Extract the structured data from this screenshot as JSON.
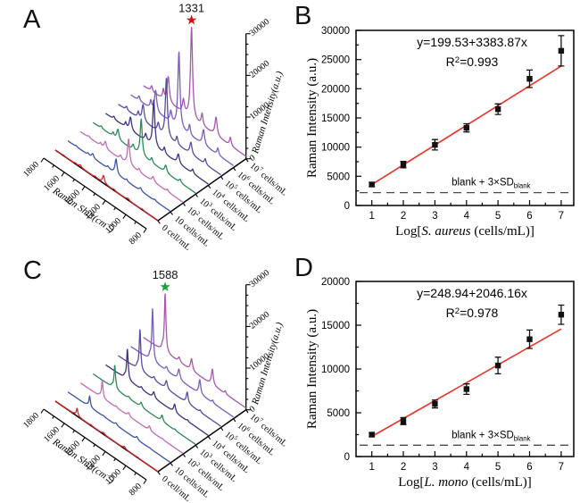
{
  "figure": {
    "background": "#ffffff",
    "panels": [
      {
        "letter": "A"
      },
      {
        "letter": "B"
      },
      {
        "letter": "C"
      },
      {
        "letter": "D"
      }
    ]
  },
  "chart_data": [
    {
      "panel": "A",
      "type": "waterfall3d",
      "peak_annotation": {
        "text": "1331",
        "star_color": "#cc1414"
      },
      "xaxis": {
        "label": "Raman Shift(cm⁻¹)",
        "label_parts": [
          {
            "t": "Raman Shift(cm"
          },
          {
            "t": "-1",
            "sup": true
          },
          {
            "t": ")"
          }
        ],
        "ticks": [
          1800,
          1600,
          1400,
          1200,
          1000,
          800
        ],
        "minor_step": 100,
        "range": [
          800,
          1800
        ]
      },
      "zaxis": {
        "label": "Raman Intensity(a.u.)",
        "ticks": [
          0,
          10000,
          20000,
          30000
        ],
        "minor_step": 2500,
        "range": [
          0,
          30000
        ]
      },
      "series": [
        {
          "label": "0 cell/mL",
          "parts": [
            {
              "t": "0 cell/mL"
            }
          ],
          "color": "#d62626",
          "peak_intensity": 1800
        },
        {
          "label": "10 cells/mL",
          "parts": [
            {
              "t": "10 cells/mL"
            }
          ],
          "color": "#3a55a8",
          "peak_intensity": 3600
        },
        {
          "label": "10² cells/mL",
          "parts": [
            {
              "t": "10"
            },
            {
              "t": "2",
              "sup": true
            },
            {
              "t": " cells/mL"
            }
          ],
          "color": "#c46cb4",
          "peak_intensity": 6200
        },
        {
          "label": "10³ cells/mL",
          "parts": [
            {
              "t": "10"
            },
            {
              "t": "3",
              "sup": true
            },
            {
              "t": " cells/mL"
            }
          ],
          "color": "#2e8b57",
          "peak_intensity": 8800
        },
        {
          "label": "10⁴ cells/mL",
          "parts": [
            {
              "t": "10"
            },
            {
              "t": "4",
              "sup": true
            },
            {
              "t": " cells/mL"
            }
          ],
          "color": "#3a3282",
          "peak_intensity": 11200
        },
        {
          "label": "10⁵ cells/mL",
          "parts": [
            {
              "t": "10"
            },
            {
              "t": "5",
              "sup": true
            },
            {
              "t": " cells/mL"
            }
          ],
          "color": "#5c49a2",
          "peak_intensity": 14200
        },
        {
          "label": "10⁶ cells/mL",
          "parts": [
            {
              "t": "10"
            },
            {
              "t": "6",
              "sup": true
            },
            {
              "t": " cells/mL"
            }
          ],
          "color": "#7a5cc0",
          "peak_intensity": 18300
        },
        {
          "label": "10⁷ cells/mL",
          "parts": [
            {
              "t": "10"
            },
            {
              "t": "7",
              "sup": true
            },
            {
              "t": " cells/mL"
            }
          ],
          "color": "#a757ae",
          "peak_intensity": 22000
        }
      ],
      "peaks": [
        {
          "shift": 952,
          "rel": 0.09,
          "width": 10
        },
        {
          "shift": 1092,
          "rel": 0.2,
          "width": 13
        },
        {
          "shift": 1228,
          "rel": 0.13,
          "width": 10
        },
        {
          "shift": 1331,
          "rel": 1.0,
          "width": 12
        },
        {
          "shift": 1410,
          "rel": 0.14,
          "width": 11
        },
        {
          "shift": 1558,
          "rel": 0.28,
          "width": 13
        },
        {
          "shift": 1605,
          "rel": 0.1,
          "width": 9
        },
        {
          "shift": 1720,
          "rel": 0.06,
          "width": 10
        }
      ],
      "baseline_rel": 0.025
    },
    {
      "panel": "B",
      "type": "scatter_calibration",
      "equation": "y=199.53+3383.87x",
      "r_squared": "R²=0.993",
      "r_squared_parts": [
        {
          "t": "R"
        },
        {
          "t": "2",
          "sup": true
        },
        {
          "t": "=0.993"
        }
      ],
      "fit": {
        "intercept": 199.53,
        "slope": 3383.87,
        "color": "#e8352b"
      },
      "xlabel": "Log[S. aureus (cells/mL)]",
      "xlabel_parts": [
        {
          "t": "Log["
        },
        {
          "t": "S. aureus",
          "i": true
        },
        {
          "t": " (cells/mL)]"
        }
      ],
      "ylabel": "Raman Intensity (a.u.)",
      "x": [
        1,
        2,
        3,
        4,
        5,
        6,
        7
      ],
      "y": [
        3600,
        7000,
        10400,
        13300,
        16500,
        21700,
        26500
      ],
      "yerr": [
        350,
        550,
        900,
        700,
        900,
        1500,
        2600
      ],
      "xlim": [
        0.5,
        7.4
      ],
      "ylim": [
        0,
        30000
      ],
      "x_ticks": [
        1,
        2,
        3,
        4,
        5,
        6,
        7
      ],
      "y_ticks": [
        0,
        5000,
        10000,
        15000,
        20000,
        25000,
        30000
      ],
      "y_minor": 2500,
      "marker_color": "#111111",
      "threshold": {
        "value": 2200,
        "label": "blank + 3×SD",
        "label_sub": "blank"
      }
    },
    {
      "panel": "C",
      "type": "waterfall3d",
      "peak_annotation": {
        "text": "1588",
        "star_color": "#1aa23e"
      },
      "xaxis": {
        "label": "Raman Shift(cm⁻¹)",
        "label_parts": [
          {
            "t": "Raman Shift(cm"
          },
          {
            "t": "-1",
            "sup": true
          },
          {
            "t": ")"
          }
        ],
        "ticks": [
          1800,
          1600,
          1400,
          1200,
          1000,
          800
        ],
        "minor_step": 100,
        "range": [
          800,
          1800
        ]
      },
      "zaxis": {
        "label": "Raman Intensity(a.u.)",
        "ticks": [
          0,
          10000,
          20000,
          30000
        ],
        "minor_step": 2500,
        "range": [
          0,
          30000
        ]
      },
      "series": [
        {
          "label": "0 cell/mL",
          "parts": [
            {
              "t": "0 cell/mL"
            }
          ],
          "color": "#d62626",
          "peak_intensity": 1800
        },
        {
          "label": "10 cells/mL",
          "parts": [
            {
              "t": "10 cells/mL"
            }
          ],
          "color": "#3a55a8",
          "peak_intensity": 2600
        },
        {
          "label": "10² cells/mL",
          "parts": [
            {
              "t": "10"
            },
            {
              "t": "2",
              "sup": true
            },
            {
              "t": " cells/mL"
            }
          ],
          "color": "#c46cb4",
          "peak_intensity": 4000
        },
        {
          "label": "10³ cells/mL",
          "parts": [
            {
              "t": "10"
            },
            {
              "t": "3",
              "sup": true
            },
            {
              "t": " cells/mL"
            }
          ],
          "color": "#2e8b57",
          "peak_intensity": 5600
        },
        {
          "label": "10⁴ cells/mL",
          "parts": [
            {
              "t": "10"
            },
            {
              "t": "4",
              "sup": true
            },
            {
              "t": " cells/mL"
            }
          ],
          "color": "#3a3282",
          "peak_intensity": 7300
        },
        {
          "label": "10⁵ cells/mL",
          "parts": [
            {
              "t": "10"
            },
            {
              "t": "5",
              "sup": true
            },
            {
              "t": " cells/mL"
            }
          ],
          "color": "#5c49a2",
          "peak_intensity": 9800
        },
        {
          "label": "10⁶ cells/mL",
          "parts": [
            {
              "t": "10"
            },
            {
              "t": "6",
              "sup": true
            },
            {
              "t": " cells/mL"
            }
          ],
          "color": "#7a5cc0",
          "peak_intensity": 12600
        },
        {
          "label": "10⁷ cells/mL",
          "parts": [
            {
              "t": "10"
            },
            {
              "t": "7",
              "sup": true
            },
            {
              "t": " cells/mL"
            }
          ],
          "color": "#a757ae",
          "peak_intensity": 14000
        }
      ],
      "peaks": [
        {
          "shift": 1002,
          "rel": 0.05,
          "width": 8
        },
        {
          "shift": 1128,
          "rel": 0.27,
          "width": 11
        },
        {
          "shift": 1331,
          "rel": 0.2,
          "width": 12
        },
        {
          "shift": 1452,
          "rel": 0.08,
          "width": 12
        },
        {
          "shift": 1588,
          "rel": 1.0,
          "width": 9
        },
        {
          "shift": 1615,
          "rel": 0.07,
          "width": 8
        }
      ],
      "baseline_rel": 0.03
    },
    {
      "panel": "D",
      "type": "scatter_calibration",
      "equation": "y=248.94+2046.16x",
      "r_squared": "R²=0.978",
      "r_squared_parts": [
        {
          "t": "R"
        },
        {
          "t": "2",
          "sup": true
        },
        {
          "t": "=0.978"
        }
      ],
      "fit": {
        "intercept": 248.94,
        "slope": 2046.16,
        "color": "#e8352b"
      },
      "xlabel": "Log[L. mono (cells/mL)]",
      "xlabel_parts": [
        {
          "t": "Log["
        },
        {
          "t": "L. mono",
          "i": true
        },
        {
          "t": " (cells/mL)]"
        }
      ],
      "ylabel": "Raman Intensity (a.u.)",
      "x": [
        1,
        2,
        3,
        4,
        5,
        6,
        7
      ],
      "y": [
        2500,
        4050,
        6000,
        7700,
        10400,
        13400,
        16200
      ],
      "yerr": [
        200,
        400,
        450,
        600,
        950,
        1050,
        1100
      ],
      "xlim": [
        0.5,
        7.4
      ],
      "ylim": [
        0,
        20000
      ],
      "x_ticks": [
        1,
        2,
        3,
        4,
        5,
        6,
        7
      ],
      "y_ticks": [
        0,
        5000,
        10000,
        15000,
        20000
      ],
      "y_minor": 2500,
      "marker_color": "#111111",
      "threshold": {
        "value": 1300,
        "label": "blank + 3×SD",
        "label_sub": "blank"
      }
    }
  ]
}
